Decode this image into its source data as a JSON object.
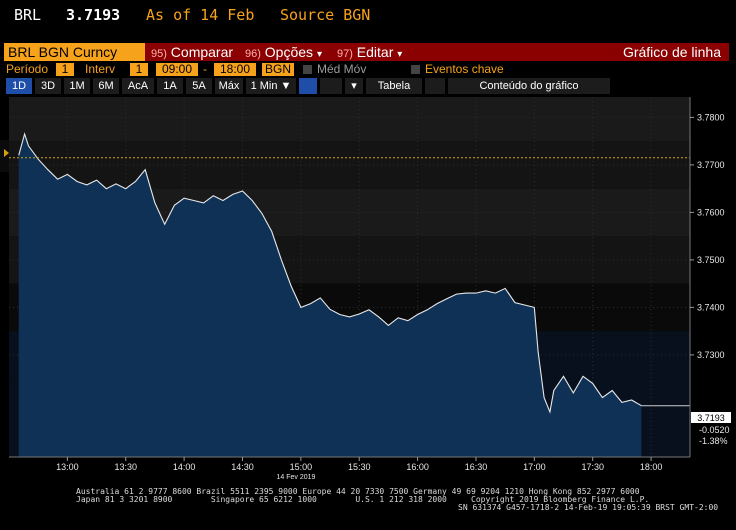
{
  "header": {
    "ticker": "BRL",
    "price": "3.7193",
    "as_of": "As of 14 Feb",
    "source": "Source BGN"
  },
  "command_bar": {
    "security": "BRL BGN Curncy",
    "buttons": [
      {
        "num": "95)",
        "label": "Comparar",
        "arrow": ""
      },
      {
        "num": "96)",
        "label": "Opções",
        "arrow": "▾"
      },
      {
        "num": "97)",
        "label": "Editar",
        "arrow": "▾"
      }
    ],
    "chart_type": "Gráfico de linha"
  },
  "params": {
    "period_label": "Período",
    "period_value": "1",
    "interval_label": "Interv",
    "interval_value": "1",
    "start_time": "09:00",
    "dash": "-",
    "end_time": "18:00",
    "source": "BGN",
    "moving_avg_label": "Méd Móv",
    "key_events_label": "Eventos chave"
  },
  "tabs": {
    "ranges": [
      "1D",
      "3D",
      "1M",
      "6M",
      "AcA",
      "1A",
      "5A",
      "Máx"
    ],
    "selected": "1D",
    "interval_select": "1 Min ▼",
    "dropdown_arrow": "▾",
    "table_label": "Tabela",
    "content_label": "Conteúdo do gráfico"
  },
  "chart_data": {
    "type": "area",
    "date_label": "14 Fev 2019",
    "x_ticks": [
      "13:00",
      "13:30",
      "14:00",
      "14:30",
      "15:00",
      "15:30",
      "16:00",
      "16:30",
      "17:00",
      "17:30",
      "18:00"
    ],
    "y_ticks": [
      "3.7800",
      "3.7700",
      "3.7600",
      "3.7500",
      "3.7400",
      "3.7300"
    ],
    "ylim": [
      3.7085,
      3.7843
    ],
    "reference_line": 3.7715,
    "last_value": "3.7193",
    "change": "-0.0520",
    "change_pct": "-1.38%",
    "series": [
      {
        "x": [
          "12:35",
          "12:38",
          "12:40",
          "12:45",
          "12:50",
          "12:55",
          "13:00",
          "13:05",
          "13:10",
          "13:15",
          "13:20",
          "13:25",
          "13:30",
          "13:35",
          "13:40",
          "13:45",
          "13:50",
          "13:55",
          "14:00",
          "14:05",
          "14:10",
          "14:15",
          "14:20",
          "14:25",
          "14:30",
          "14:35",
          "14:40",
          "14:45",
          "14:50",
          "14:55",
          "15:00",
          "15:05",
          "15:10",
          "15:15",
          "15:20",
          "15:25",
          "15:30",
          "15:35",
          "15:40",
          "15:45",
          "15:50",
          "15:55",
          "16:00",
          "16:05",
          "16:10",
          "16:15",
          "16:20",
          "16:25",
          "16:30",
          "16:35",
          "16:40",
          "16:45",
          "16:50",
          "16:55",
          "17:00",
          "17:02",
          "17:05",
          "17:08",
          "17:10",
          "17:15",
          "17:20",
          "17:25",
          "17:30",
          "17:35",
          "17:40",
          "17:45",
          "17:50",
          "17:55"
        ],
        "values": [
          3.772,
          3.7765,
          3.774,
          3.7712,
          3.769,
          3.767,
          3.768,
          3.7665,
          3.7658,
          3.7668,
          3.765,
          3.766,
          3.765,
          3.7665,
          3.769,
          3.762,
          3.7575,
          3.7615,
          3.763,
          3.7625,
          3.762,
          3.7635,
          3.7625,
          3.7638,
          3.7645,
          3.7625,
          3.7598,
          3.756,
          3.75,
          3.7445,
          3.74,
          3.7408,
          3.742,
          3.7396,
          3.7385,
          3.738,
          3.7386,
          3.7395,
          3.738,
          3.7362,
          3.7378,
          3.7372,
          3.7385,
          3.7395,
          3.7408,
          3.7418,
          3.7428,
          3.743,
          3.743,
          3.7435,
          3.743,
          3.744,
          3.741,
          3.7405,
          3.74,
          3.7305,
          3.721,
          3.718,
          3.7225,
          3.7255,
          3.722,
          3.7255,
          3.724,
          3.721,
          3.7225,
          3.72,
          3.7205,
          3.7193
        ]
      }
    ]
  },
  "footer": {
    "line1": "Australia 61 2 9777 8600 Brazil 5511 2395 9000 Europe 44 20 7330 7500 Germany 49 69 9204 1210 Hong Kong 852 2977 6000",
    "line2a": "Japan 81 3 3201 8900        Singapore 65 6212 1000        U.S. 1 212 318 2000",
    "line2b": "Copyright 2019 Bloomberg Finance L.P.",
    "line3": "SN 631374 G457-1718-2 14-Feb-19 19:05:39 BRST GMT-2:00"
  }
}
